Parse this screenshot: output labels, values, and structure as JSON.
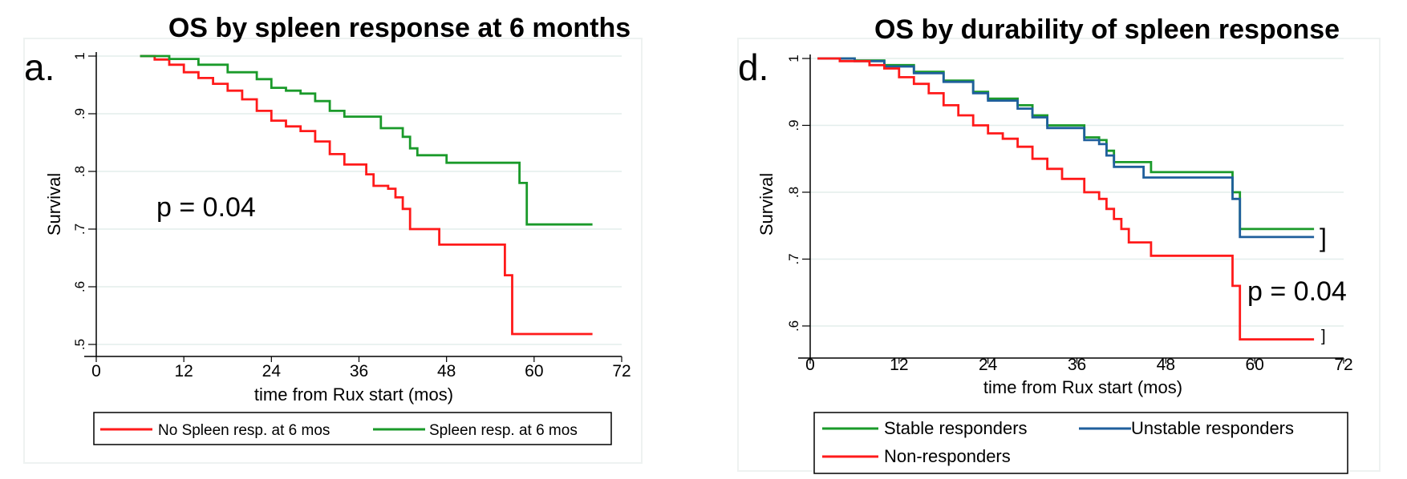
{
  "panels": [
    {
      "id": "a",
      "title": "OS by spleen response at 6 months",
      "letter": "a.",
      "p_value": "p = 0.04",
      "chart_data": {
        "type": "line",
        "title": "OS by spleen response at 6 months",
        "xlabel": "time from Rux start (mos)",
        "ylabel": "Survival",
        "xlim": [
          0,
          72
        ],
        "ylim": [
          0.5,
          1
        ],
        "xticks": [
          "0",
          "12",
          "24",
          "36",
          "48",
          "60",
          "72"
        ],
        "yticks": [
          ".5",
          ".6",
          ".7",
          ".8",
          ".9",
          "1"
        ],
        "legend_placement": "bottom",
        "grid": true,
        "series": [
          {
            "name": "No Spleen resp. at 6 mos",
            "color": "#ff1a1a",
            "points": [
              [
                6,
                1.0
              ],
              [
                8,
                0.994
              ],
              [
                10,
                0.985
              ],
              [
                12,
                0.972
              ],
              [
                14,
                0.962
              ],
              [
                16,
                0.952
              ],
              [
                18,
                0.94
              ],
              [
                20,
                0.925
              ],
              [
                22,
                0.905
              ],
              [
                24,
                0.888
              ],
              [
                26,
                0.878
              ],
              [
                28,
                0.87
              ],
              [
                30,
                0.852
              ],
              [
                32,
                0.83
              ],
              [
                34,
                0.812
              ],
              [
                36,
                0.812
              ],
              [
                37,
                0.795
              ],
              [
                38,
                0.775
              ],
              [
                40,
                0.77
              ],
              [
                41,
                0.755
              ],
              [
                42,
                0.735
              ],
              [
                43,
                0.7
              ],
              [
                46,
                0.7
              ],
              [
                47,
                0.673
              ],
              [
                55,
                0.673
              ],
              [
                56,
                0.62
              ],
              [
                57,
                0.518
              ],
              [
                68,
                0.518
              ]
            ]
          },
          {
            "name": "Spleen resp. at 6 mos",
            "color": "#1a9a2a",
            "points": [
              [
                6,
                1.0
              ],
              [
                10,
                0.995
              ],
              [
                14,
                0.985
              ],
              [
                18,
                0.972
              ],
              [
                22,
                0.96
              ],
              [
                24,
                0.945
              ],
              [
                26,
                0.94
              ],
              [
                28,
                0.935
              ],
              [
                30,
                0.922
              ],
              [
                32,
                0.905
              ],
              [
                34,
                0.895
              ],
              [
                38,
                0.895
              ],
              [
                39,
                0.875
              ],
              [
                41,
                0.875
              ],
              [
                42,
                0.86
              ],
              [
                43,
                0.84
              ],
              [
                44,
                0.828
              ],
              [
                47,
                0.828
              ],
              [
                48,
                0.815
              ],
              [
                57,
                0.815
              ],
              [
                58,
                0.78
              ],
              [
                59,
                0.708
              ],
              [
                68,
                0.708
              ]
            ]
          }
        ]
      }
    },
    {
      "id": "d",
      "title": "OS by durability of spleen response",
      "letter": "d.",
      "p_value": "p = 0.04",
      "chart_data": {
        "type": "line",
        "title": "OS by durability of spleen response",
        "xlabel": "time from Rux start (mos)",
        "ylabel": "Survival",
        "xlim": [
          0,
          72
        ],
        "ylim": [
          0.57,
          1
        ],
        "xticks": [
          "0",
          "12",
          "24",
          "36",
          "48",
          "60",
          "72"
        ],
        "yticks": [
          ".6",
          ".7",
          ".8",
          ".9",
          "1"
        ],
        "legend_placement": "bottom",
        "grid": true,
        "series": [
          {
            "name": "Stable responders",
            "color": "#1a9a2a",
            "points": [
              [
                1,
                1.0
              ],
              [
                6,
                0.997
              ],
              [
                10,
                0.99
              ],
              [
                14,
                0.98
              ],
              [
                18,
                0.967
              ],
              [
                22,
                0.95
              ],
              [
                24,
                0.94
              ],
              [
                28,
                0.93
              ],
              [
                30,
                0.915
              ],
              [
                32,
                0.9
              ],
              [
                36,
                0.9
              ],
              [
                37,
                0.882
              ],
              [
                39,
                0.878
              ],
              [
                40,
                0.862
              ],
              [
                41,
                0.845
              ],
              [
                45,
                0.845
              ],
              [
                46,
                0.83
              ],
              [
                56,
                0.83
              ],
              [
                57,
                0.8
              ],
              [
                58,
                0.745
              ],
              [
                68,
                0.745
              ]
            ]
          },
          {
            "name": "Unstable responders",
            "color": "#1f5f9c",
            "points": [
              [
                1,
                1.0
              ],
              [
                6,
                0.996
              ],
              [
                10,
                0.988
              ],
              [
                14,
                0.978
              ],
              [
                18,
                0.965
              ],
              [
                22,
                0.948
              ],
              [
                24,
                0.937
              ],
              [
                28,
                0.925
              ],
              [
                30,
                0.912
              ],
              [
                32,
                0.896
              ],
              [
                36,
                0.896
              ],
              [
                37,
                0.878
              ],
              [
                39,
                0.872
              ],
              [
                40,
                0.855
              ],
              [
                41,
                0.838
              ],
              [
                44,
                0.838
              ],
              [
                45,
                0.822
              ],
              [
                56,
                0.822
              ],
              [
                57,
                0.79
              ],
              [
                58,
                0.733
              ],
              [
                68,
                0.733
              ]
            ]
          },
          {
            "name": "Non-responders",
            "color": "#ff1a1a",
            "points": [
              [
                1,
                1.0
              ],
              [
                4,
                0.996
              ],
              [
                8,
                0.99
              ],
              [
                10,
                0.985
              ],
              [
                12,
                0.972
              ],
              [
                14,
                0.962
              ],
              [
                16,
                0.948
              ],
              [
                18,
                0.93
              ],
              [
                20,
                0.915
              ],
              [
                22,
                0.9
              ],
              [
                24,
                0.888
              ],
              [
                26,
                0.88
              ],
              [
                28,
                0.868
              ],
              [
                30,
                0.85
              ],
              [
                32,
                0.835
              ],
              [
                34,
                0.82
              ],
              [
                36,
                0.82
              ],
              [
                37,
                0.8
              ],
              [
                39,
                0.79
              ],
              [
                40,
                0.775
              ],
              [
                41,
                0.76
              ],
              [
                42,
                0.745
              ],
              [
                43,
                0.725
              ],
              [
                45,
                0.725
              ],
              [
                46,
                0.705
              ],
              [
                56,
                0.705
              ],
              [
                57,
                0.66
              ],
              [
                58,
                0.58
              ],
              [
                68,
                0.58
              ]
            ]
          }
        ]
      }
    }
  ],
  "legend_a": [
    "No Spleen resp. at 6 mos",
    "Spleen resp. at 6 mos"
  ],
  "legend_d": [
    "Stable responders",
    "Unstable responders",
    "Non-responders"
  ]
}
